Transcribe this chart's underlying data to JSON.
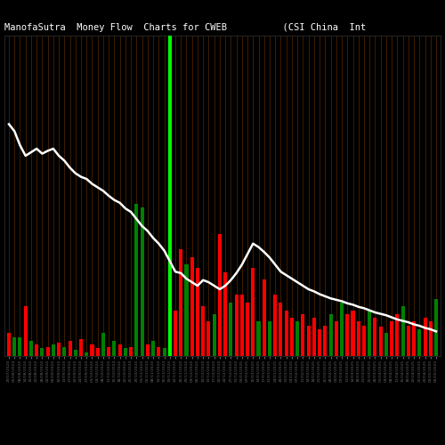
{
  "title": "ManofaSutra  Money Flow  Charts for CWEB          (CSI China  Int",
  "background_color": "#000000",
  "bar_colors": [
    "red",
    "green",
    "green",
    "red",
    "green",
    "red",
    "green",
    "red",
    "green",
    "red",
    "green",
    "red",
    "green",
    "red",
    "green",
    "red",
    "red",
    "green",
    "red",
    "green",
    "red",
    "green",
    "red",
    "green",
    "green",
    "red",
    "green",
    "red",
    "green",
    "green",
    "red",
    "red",
    "green",
    "red",
    "red",
    "red",
    "red",
    "green",
    "red",
    "red",
    "green",
    "red",
    "red",
    "red",
    "red",
    "green",
    "red",
    "green",
    "red",
    "red",
    "red",
    "red",
    "green",
    "red",
    "red",
    "red",
    "red",
    "red",
    "green",
    "red",
    "green",
    "red",
    "red",
    "red",
    "red",
    "green",
    "red",
    "red",
    "green",
    "red",
    "red",
    "green",
    "red",
    "red",
    "green",
    "red",
    "red",
    "green"
  ],
  "bar_heights": [
    30,
    25,
    25,
    65,
    20,
    15,
    10,
    12,
    15,
    18,
    12,
    20,
    8,
    22,
    5,
    15,
    10,
    30,
    12,
    20,
    15,
    10,
    12,
    200,
    195,
    15,
    20,
    12,
    10,
    380,
    60,
    140,
    120,
    130,
    115,
    65,
    45,
    55,
    160,
    110,
    70,
    80,
    80,
    70,
    115,
    45,
    100,
    45,
    80,
    70,
    60,
    50,
    45,
    55,
    40,
    50,
    35,
    40,
    55,
    45,
    70,
    55,
    60,
    45,
    40,
    60,
    50,
    38,
    30,
    45,
    55,
    65,
    40,
    45,
    35,
    50,
    45,
    75
  ],
  "line_values": [
    330,
    320,
    300,
    285,
    290,
    295,
    288,
    292,
    295,
    285,
    278,
    268,
    260,
    255,
    252,
    245,
    240,
    235,
    228,
    222,
    218,
    210,
    205,
    195,
    185,
    178,
    168,
    160,
    150,
    135,
    120,
    118,
    110,
    105,
    100,
    108,
    105,
    100,
    95,
    100,
    108,
    118,
    130,
    145,
    160,
    155,
    148,
    140,
    130,
    120,
    115,
    110,
    105,
    100,
    95,
    92,
    88,
    85,
    82,
    80,
    78,
    75,
    73,
    70,
    68,
    65,
    62,
    60,
    58,
    55,
    52,
    50,
    48,
    45,
    43,
    40,
    38,
    35
  ],
  "spike_bar_index": 29,
  "spike_color": "#00ff00",
  "n_bars": 78,
  "xlabels": [
    "29/07/2024",
    "05/08/2024",
    "08/08/2024",
    "14/08/2024",
    "19/08/2024",
    "22/08/2024",
    "28/08/2024",
    "02/09/2024",
    "06/09/2024",
    "10/09/2024",
    "13/09/2024",
    "17/09/2024",
    "20/09/2024",
    "24/09/2024",
    "27/09/2024",
    "01/10/2024",
    "04/10/2024",
    "08/10/2024",
    "11/10/2024",
    "15/10/2024",
    "18/10/2024",
    "22/10/2024",
    "25/10/2024",
    "29/10/2024",
    "01/11/2024",
    "05/11/2024",
    "08/11/2024",
    "12/11/2024",
    "15/11/2024",
    "19/11/2024",
    "22/11/2024",
    "26/11/2024",
    "29/11/2024",
    "03/12/2024",
    "06/12/2024",
    "10/12/2024",
    "13/12/2024",
    "17/12/2024",
    "20/12/2024",
    "24/12/2024",
    "27/12/2024",
    "31/12/2024",
    "03/01/2025",
    "07/01/2025",
    "10/01/2025",
    "14/01/2025",
    "17/01/2025",
    "21/01/2025",
    "24/01/2025",
    "28/01/2025",
    "31/01/2025",
    "04/02/2025",
    "07/02/2025",
    "11/02/2025",
    "14/02/2025",
    "18/02/2025",
    "21/02/2025",
    "25/02/2025",
    "28/02/2025",
    "04/03/2025",
    "07/03/2025",
    "11/03/2025",
    "14/03/2025",
    "18/03/2025",
    "21/03/2025",
    "25/03/2025",
    "28/03/2025",
    "01/04/2025",
    "04/04/2025",
    "08/04/2025",
    "11/04/2025",
    "15/04/2025",
    "18/04/2025",
    "22/04/2025",
    "25/04/2025",
    "29/04/2025",
    "02/05/2025",
    "06/05/2025"
  ],
  "title_color": "#ffffff",
  "title_fontsize": 7.5,
  "bar_alpha": 1.0,
  "line_color": "#ffffff",
  "line_width": 1.8,
  "vline_color": "#008800",
  "ylim": [
    0,
    420
  ],
  "line_scale_max": 380,
  "line_display_max": 350
}
